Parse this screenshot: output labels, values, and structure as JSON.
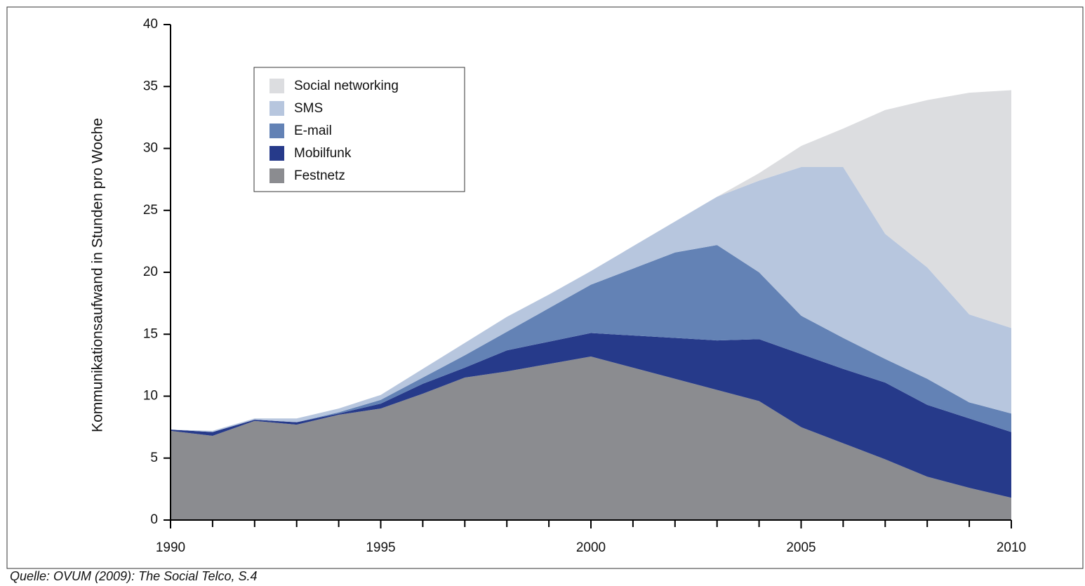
{
  "chart_data": {
    "type": "stacked_area",
    "y_label": "Kommunikationsaufwand in Stunden pro Woche",
    "source": "Quelle: OVUM (2009): The Social Telco, S.4",
    "x": [
      1990,
      1991,
      1992,
      1993,
      1994,
      1995,
      1996,
      1997,
      1998,
      1999,
      2000,
      2001,
      2002,
      2003,
      2004,
      2005,
      2006,
      2007,
      2008,
      2009,
      2010
    ],
    "series": [
      {
        "name": "Festnetz",
        "color": "#8b8c90",
        "values": [
          7.2,
          6.8,
          8.0,
          7.7,
          8.5,
          9.0,
          10.2,
          11.5,
          12.0,
          12.6,
          13.2,
          12.3,
          11.4,
          10.5,
          9.6,
          7.5,
          6.2,
          4.9,
          3.5,
          2.6,
          1.8
        ]
      },
      {
        "name": "Mobilfunk",
        "color": "#263a8a",
        "values": [
          0.1,
          0.3,
          0.1,
          0.2,
          0.1,
          0.4,
          0.8,
          0.8,
          1.7,
          1.8,
          1.9,
          2.6,
          3.3,
          4.0,
          5.0,
          5.9,
          6.0,
          6.2,
          5.8,
          5.6,
          5.3
        ]
      },
      {
        "name": "E-mail",
        "color": "#6382b5",
        "values": [
          0,
          0,
          0,
          0,
          0.1,
          0.3,
          0.5,
          1.0,
          1.5,
          2.7,
          3.9,
          5.4,
          6.9,
          7.7,
          5.4,
          3.1,
          2.5,
          1.9,
          2.1,
          1.3,
          1.5
        ]
      },
      {
        "name": "SMS",
        "color": "#b7c6de",
        "values": [
          0,
          0.1,
          0.1,
          0.3,
          0.3,
          0.4,
          0.7,
          1.0,
          1.2,
          1.1,
          1.1,
          1.8,
          2.5,
          3.9,
          7.4,
          12.0,
          13.8,
          10.1,
          9.0,
          7.1,
          6.9
        ]
      },
      {
        "name": "Social networking",
        "color": "#dcdde0",
        "values": [
          0,
          0,
          0,
          0,
          0,
          0,
          0,
          0,
          0,
          0,
          0,
          0,
          0,
          0,
          0.6,
          1.7,
          3.1,
          10.0,
          13.5,
          17.9,
          19.2
        ]
      }
    ],
    "xlim": [
      1990,
      2010
    ],
    "xticks": [
      1990,
      1995,
      2000,
      2005,
      2010
    ],
    "ylim": [
      0,
      40
    ],
    "yticks": [
      0,
      5,
      10,
      15,
      20,
      25,
      30,
      35,
      40
    ]
  }
}
